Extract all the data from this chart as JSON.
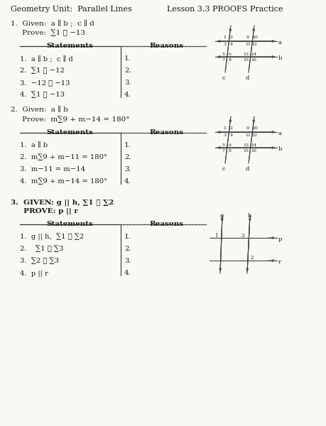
{
  "title_left": "Geometry Unit:  Parallel Lines",
  "title_right": "Lesson 3.3 PROOFS Practice",
  "bg_color": "#f8f8f5",
  "proof1_given": "1.  Given:  a ∥ b ;  c ∥ d",
  "proof1_prove": "     Prove:  ∑1 ≅ −13",
  "proof1_stmts": [
    "1.  a ∥ b ;  c ∥ d",
    "2.  ∑1 ≅ −12",
    "3.  −12 ≅ −13",
    "4.  ∑1 ≅ −13"
  ],
  "proof2_given": "2.  Given:  a ∥ b",
  "proof2_prove": "     Prove:  m∑9 + m−14 = 180°",
  "proof2_stmts": [
    "1.  a ∥ b",
    "2.  m∑9 + m−11 = 180°",
    "3.  m−11 = m−14",
    "4.  m∑9 + m−14 = 180°"
  ],
  "proof3_given": "3.  GIVEN: g || h, ∑1 ≅ ∑2",
  "proof3_prove": "     PROVE: p || r",
  "proof3_stmts": [
    "1.  g || h,  ∑1 ≅ ∑2",
    "2.    ∑1 ≅ ∑3",
    "3.  ∑2 ≅ ∑3",
    "4.  p || r"
  ]
}
